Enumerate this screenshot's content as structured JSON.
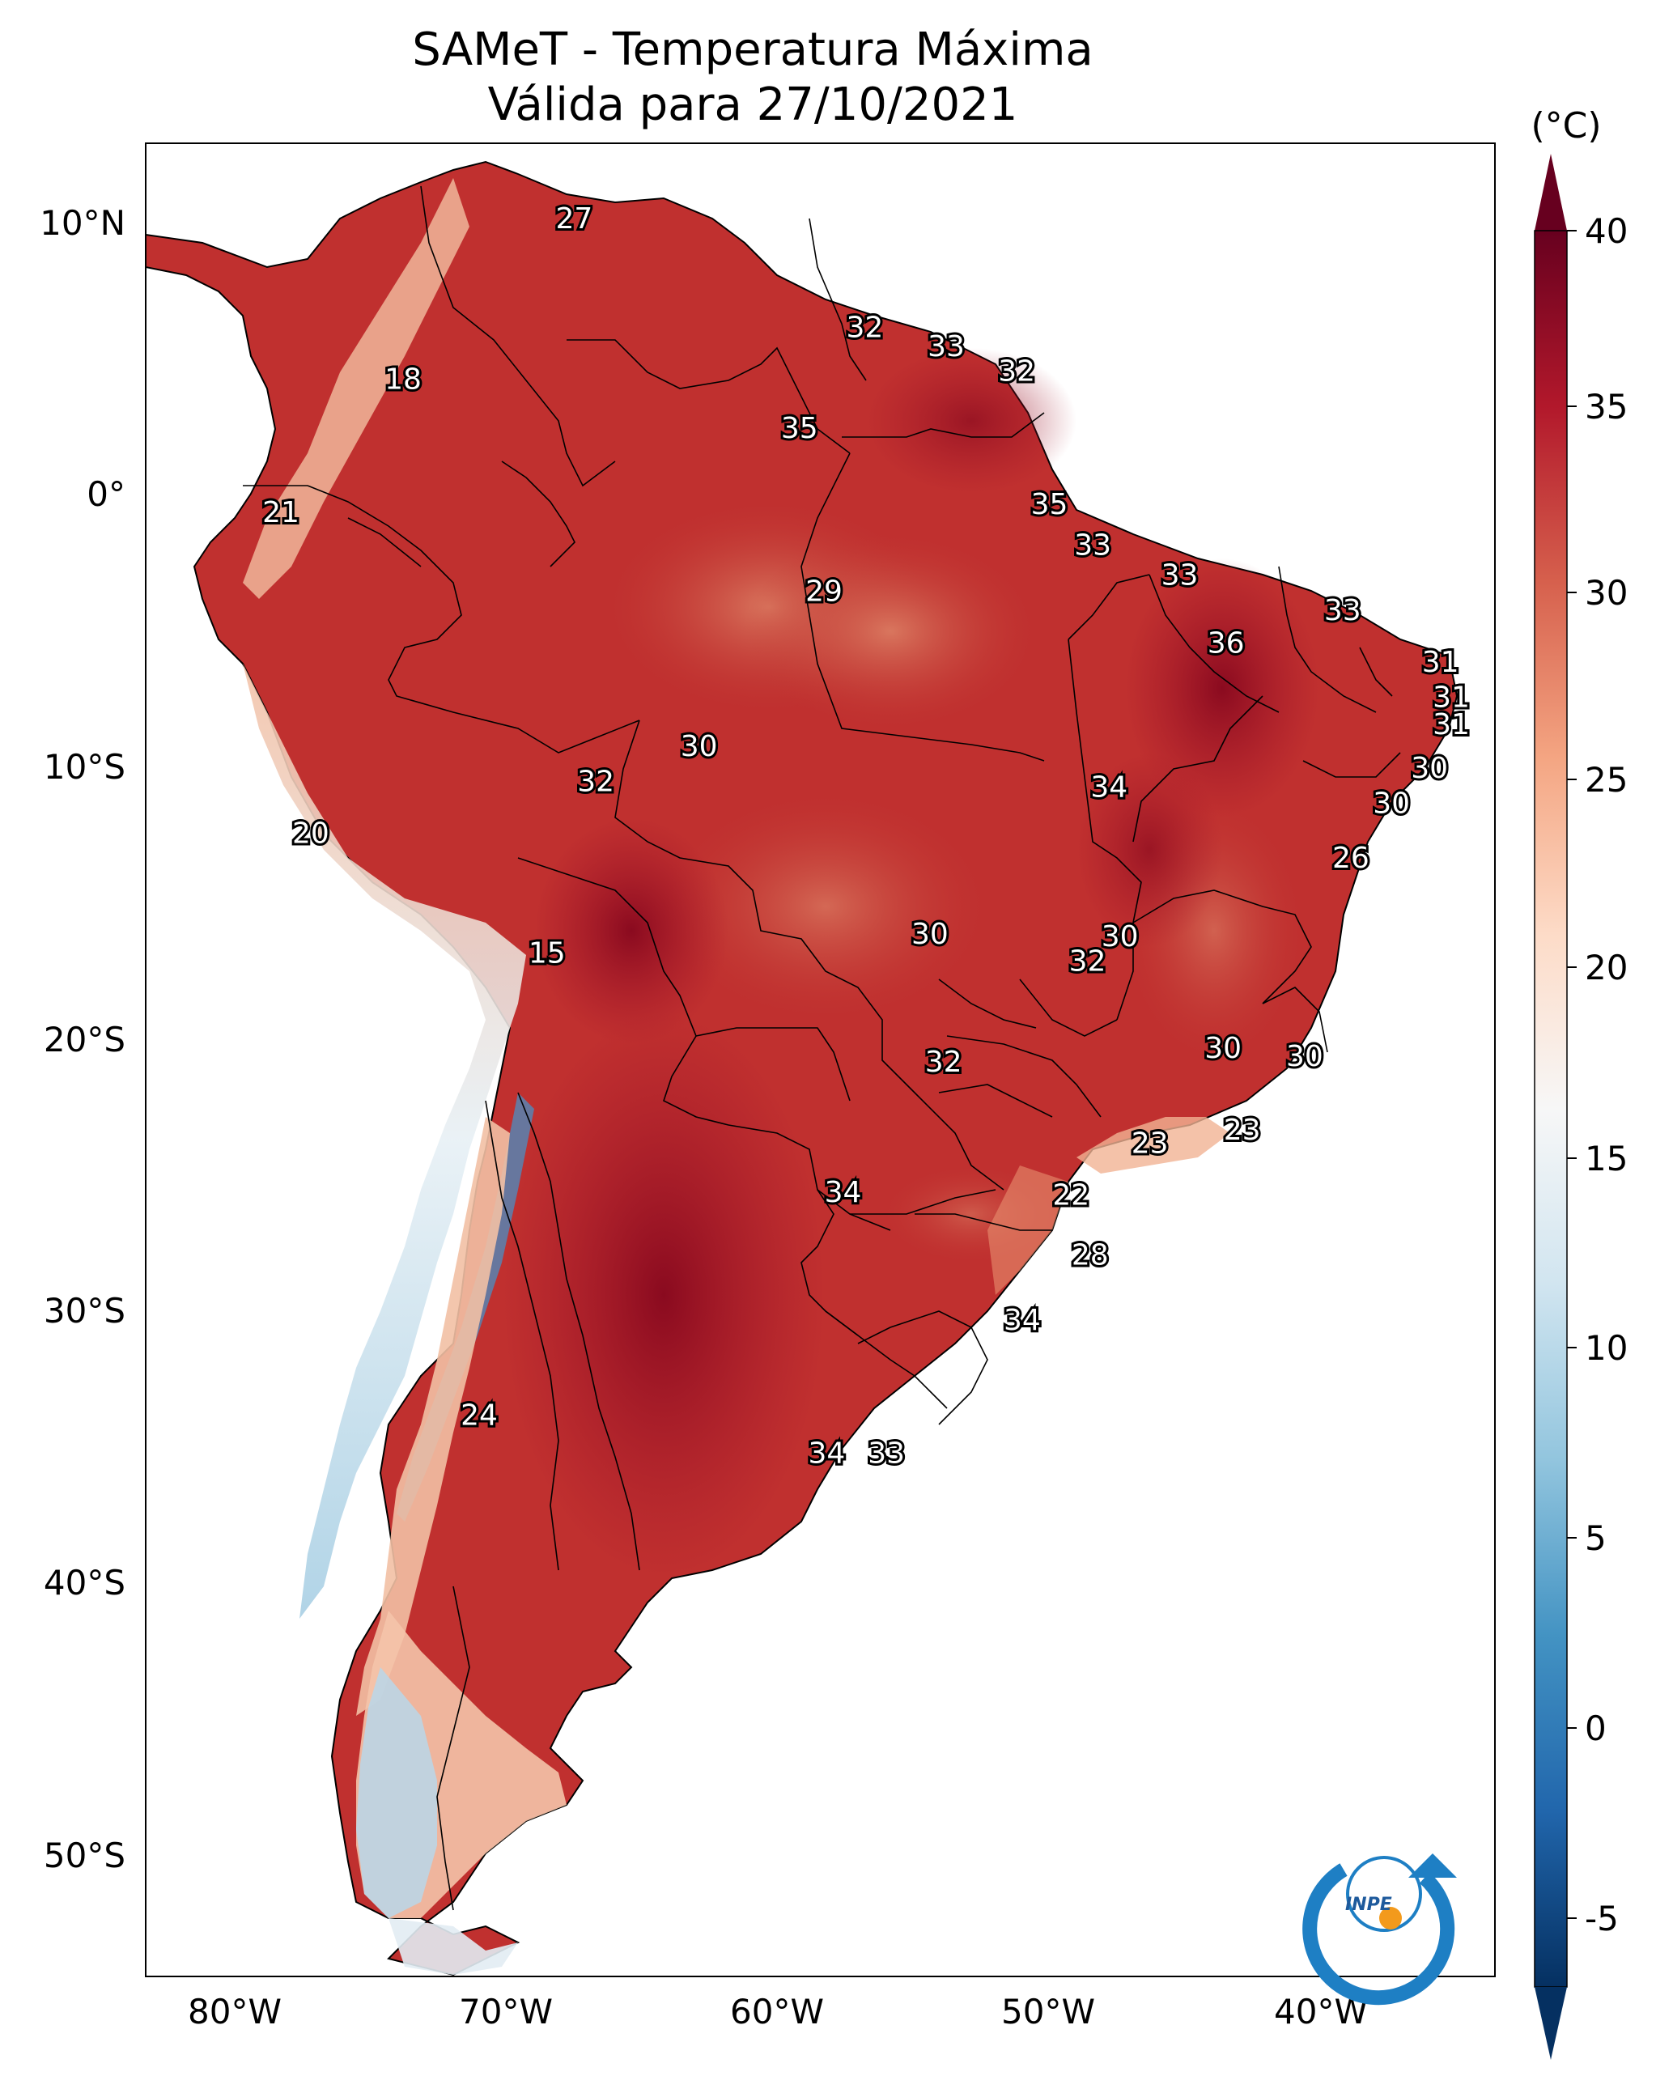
{
  "title": {
    "line1": "SAMeT - Temperatura Máxima",
    "line2": "Válida para 27/10/2021"
  },
  "axes": {
    "lon_ticks": [
      "80°W",
      "70°W",
      "60°W",
      "50°W",
      "40°W"
    ],
    "lat_ticks": [
      "10°N",
      "0°",
      "10°S",
      "20°S",
      "30°S",
      "40°S",
      "50°S"
    ]
  },
  "colorbar": {
    "unit": "(°C)",
    "ticks": [
      "40",
      "35",
      "30",
      "25",
      "20",
      "15",
      "10",
      "5",
      "0",
      "-5"
    ],
    "colors": [
      "#67001f",
      "#b2182b",
      "#d6604d",
      "#f4a582",
      "#fddbc7",
      "#f7f7f7",
      "#d1e5f0",
      "#92c5de",
      "#4393c3",
      "#2166ac",
      "#053061"
    ]
  },
  "logo": {
    "text": "INPE",
    "icon": "inpe-logo-icon"
  },
  "map_labels": [
    {
      "value": "27",
      "lon": -67.5,
      "lat": 10.5
    },
    {
      "value": "32",
      "lon": -56.8,
      "lat": 6.5
    },
    {
      "value": "33",
      "lon": -53.8,
      "lat": 5.8
    },
    {
      "value": "32",
      "lon": -51.2,
      "lat": 4.9
    },
    {
      "value": "18",
      "lon": -73.8,
      "lat": 4.6
    },
    {
      "value": "35",
      "lon": -59.2,
      "lat": 2.8
    },
    {
      "value": "21",
      "lon": -78.3,
      "lat": -0.3
    },
    {
      "value": "35",
      "lon": -50.0,
      "lat": 0.0
    },
    {
      "value": "33",
      "lon": -48.4,
      "lat": -1.5
    },
    {
      "value": "33",
      "lon": -45.2,
      "lat": -2.6
    },
    {
      "value": "29",
      "lon": -58.3,
      "lat": -3.2
    },
    {
      "value": "33",
      "lon": -39.2,
      "lat": -3.9
    },
    {
      "value": "36",
      "lon": -43.5,
      "lat": -5.1
    },
    {
      "value": "31",
      "lon": -35.6,
      "lat": -5.8
    },
    {
      "value": "31",
      "lon": -35.2,
      "lat": -7.1
    },
    {
      "value": "31",
      "lon": -35.2,
      "lat": -8.1
    },
    {
      "value": "30",
      "lon": -62.9,
      "lat": -8.9
    },
    {
      "value": "30",
      "lon": -36.0,
      "lat": -9.7
    },
    {
      "value": "32",
      "lon": -66.7,
      "lat": -10.2
    },
    {
      "value": "34",
      "lon": -47.8,
      "lat": -10.4
    },
    {
      "value": "30",
      "lon": -37.4,
      "lat": -11.0
    },
    {
      "value": "20",
      "lon": -77.2,
      "lat": -12.1
    },
    {
      "value": "26",
      "lon": -38.9,
      "lat": -13.0
    },
    {
      "value": "30",
      "lon": -54.4,
      "lat": -15.8
    },
    {
      "value": "30",
      "lon": -47.4,
      "lat": -15.9
    },
    {
      "value": "15",
      "lon": -68.5,
      "lat": -16.5
    },
    {
      "value": "32",
      "lon": -48.6,
      "lat": -16.8
    },
    {
      "value": "30",
      "lon": -43.6,
      "lat": -20.0
    },
    {
      "value": "30",
      "lon": -40.6,
      "lat": -20.3
    },
    {
      "value": "32",
      "lon": -53.9,
      "lat": -20.5
    },
    {
      "value": "23",
      "lon": -42.9,
      "lat": -23.0
    },
    {
      "value": "23",
      "lon": -46.3,
      "lat": -23.5
    },
    {
      "value": "22",
      "lon": -49.2,
      "lat": -25.4
    },
    {
      "value": "34",
      "lon": -57.6,
      "lat": -25.3
    },
    {
      "value": "28",
      "lon": -48.5,
      "lat": -27.6
    },
    {
      "value": "34",
      "lon": -51.0,
      "lat": -30.0
    },
    {
      "value": "24",
      "lon": -71.0,
      "lat": -33.5
    },
    {
      "value": "34",
      "lon": -58.2,
      "lat": -34.9
    },
    {
      "value": "33",
      "lon": -56.0,
      "lat": -34.9
    }
  ]
}
